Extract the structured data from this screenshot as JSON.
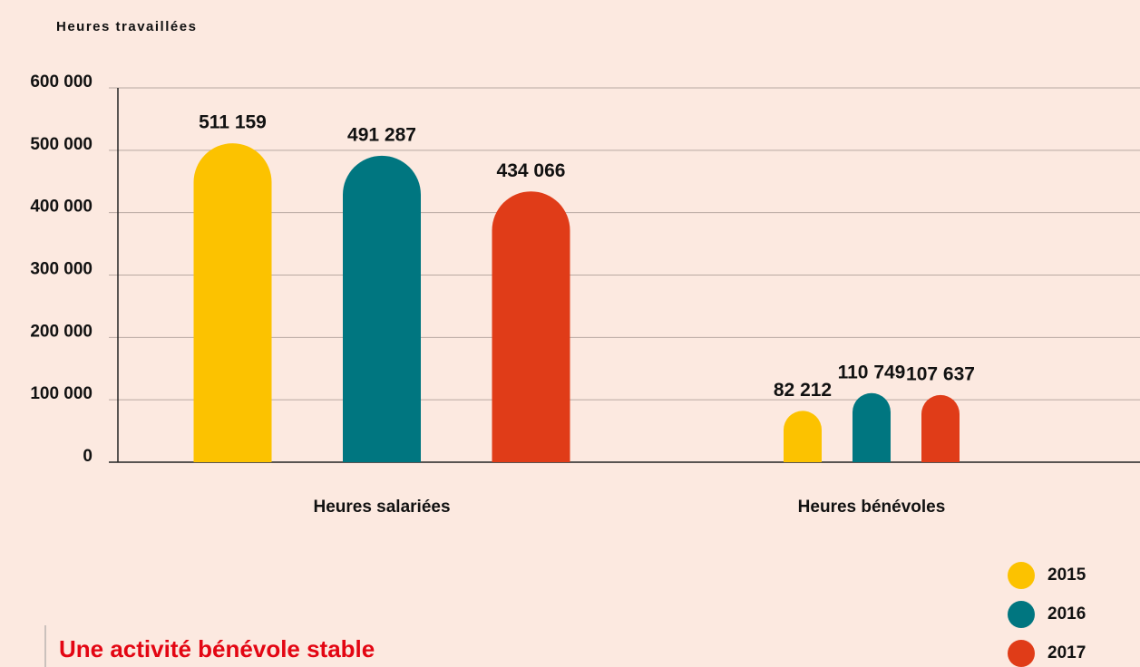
{
  "chart_data": {
    "type": "bar",
    "title": "Heures travaillées",
    "annotation": "Une activité bénévole stable",
    "categories": [
      "Heures salariées",
      "Heures bénévoles"
    ],
    "series": [
      {
        "name": "2015",
        "color": "#fcc200",
        "values": [
          511159,
          82212
        ],
        "value_labels": [
          "511 159",
          "82 212"
        ]
      },
      {
        "name": "2016",
        "color": "#007680",
        "values": [
          491287,
          110749
        ],
        "value_labels": [
          "491 287",
          "110 749"
        ]
      },
      {
        "name": "2017",
        "color": "#e03c18",
        "values": [
          434066,
          107637
        ],
        "value_labels": [
          "434 066",
          "107 637"
        ]
      }
    ],
    "ylim": [
      0,
      600000
    ],
    "yticks": [
      0,
      {
        "value": 100000,
        "label": "100 000"
      },
      {
        "value": 200000,
        "label": "200 000"
      },
      {
        "value": 300000,
        "label": "300 000"
      },
      {
        "value": 400000,
        "label": "400 000"
      },
      {
        "value": 500000,
        "label": "500 000"
      },
      {
        "value": 600000,
        "label": "600 000"
      }
    ],
    "grid": true
  }
}
